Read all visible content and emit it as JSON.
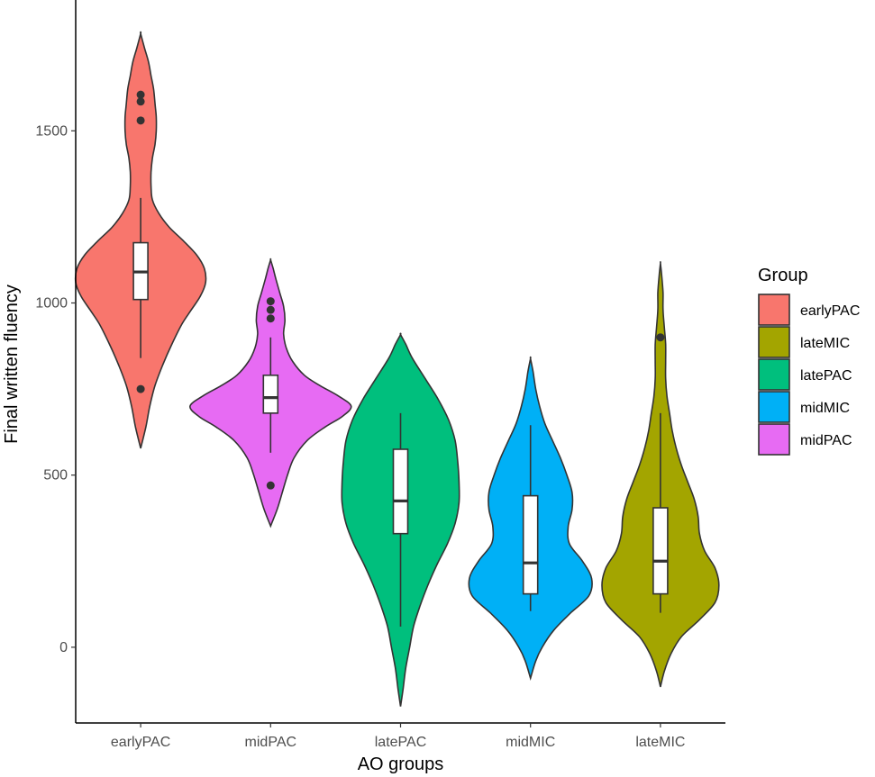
{
  "chart_data": {
    "type": "violin",
    "xlabel": "AO groups",
    "ylabel": "Final written fluency",
    "ylim": [
      -220,
      1880
    ],
    "yticks": [
      0,
      500,
      1000,
      1500
    ],
    "grid": false,
    "legend": {
      "title": "Group",
      "placement": "right",
      "entries": [
        {
          "label": "earlyPAC",
          "color": "#F8766D"
        },
        {
          "label": "lateMIC",
          "color": "#A3A500"
        },
        {
          "label": "latePAC",
          "color": "#00BF7D"
        },
        {
          "label": "midMIC",
          "color": "#00B0F6"
        },
        {
          "label": "midPAC",
          "color": "#E76BF3"
        }
      ]
    },
    "categories": [
      "earlyPAC",
      "midPAC",
      "latePAC",
      "midMIC",
      "lateMIC"
    ],
    "groups": [
      {
        "name": "earlyPAC",
        "color": "#F8766D",
        "box": {
          "q1": 1010,
          "median": 1090,
          "q3": 1175,
          "whisker_low": 840,
          "whisker_high": 1305
        },
        "outliers": [
          750,
          1530,
          1585,
          1605
        ],
        "violin": {
          "y": [
            578,
            640,
            700,
            760,
            820,
            880,
            940,
            980,
            1020,
            1060,
            1100,
            1140,
            1180,
            1220,
            1260,
            1300,
            1340,
            1380,
            1420,
            1460,
            1500,
            1540,
            1580,
            1620,
            1660,
            1700,
            1740,
            1782
          ],
          "half_width": [
            0,
            0.04,
            0.07,
            0.11,
            0.17,
            0.24,
            0.32,
            0.39,
            0.46,
            0.5,
            0.49,
            0.43,
            0.33,
            0.22,
            0.14,
            0.09,
            0.08,
            0.08,
            0.09,
            0.11,
            0.12,
            0.12,
            0.11,
            0.1,
            0.08,
            0.06,
            0.03,
            0
          ]
        }
      },
      {
        "name": "midPAC",
        "color": "#E76BF3",
        "box": {
          "q1": 680,
          "median": 725,
          "q3": 790,
          "whisker_low": 565,
          "whisker_high": 900
        },
        "outliers": [
          470,
          955,
          980,
          1005
        ],
        "violin": {
          "y": [
            352,
            400,
            450,
            500,
            550,
            600,
            640,
            670,
            700,
            730,
            760,
            790,
            830,
            870,
            910,
            950,
            990,
            1030,
            1070,
            1100,
            1125
          ],
          "half_width": [
            0,
            0.05,
            0.09,
            0.13,
            0.18,
            0.28,
            0.42,
            0.55,
            0.62,
            0.52,
            0.38,
            0.26,
            0.17,
            0.12,
            0.1,
            0.11,
            0.1,
            0.07,
            0.04,
            0.02,
            0
          ]
        }
      },
      {
        "name": "latePAC",
        "color": "#00BF7D",
        "box": {
          "q1": 330,
          "median": 425,
          "q3": 575,
          "whisker_low": 60,
          "whisker_high": 680
        },
        "outliers": [],
        "violin": {
          "y": [
            -172,
            -120,
            -60,
            0,
            60,
            120,
            180,
            240,
            300,
            360,
            420,
            480,
            540,
            600,
            660,
            720,
            780,
            840,
            880,
            908
          ],
          "half_width": [
            0,
            0.02,
            0.04,
            0.07,
            0.1,
            0.15,
            0.21,
            0.28,
            0.36,
            0.42,
            0.45,
            0.45,
            0.44,
            0.42,
            0.37,
            0.29,
            0.19,
            0.09,
            0.04,
            0
          ]
        }
      },
      {
        "name": "midMIC",
        "color": "#00B0F6",
        "box": {
          "q1": 155,
          "median": 245,
          "q3": 440,
          "whisker_low": 105,
          "whisker_high": 645
        },
        "outliers": [],
        "violin": {
          "y": [
            -90,
            -40,
            0,
            50,
            100,
            150,
            200,
            250,
            300,
            350,
            400,
            450,
            500,
            550,
            600,
            650,
            700,
            750,
            800,
            838
          ],
          "half_width": [
            0,
            0.04,
            0.09,
            0.18,
            0.31,
            0.45,
            0.47,
            0.4,
            0.3,
            0.29,
            0.32,
            0.32,
            0.28,
            0.23,
            0.17,
            0.11,
            0.07,
            0.04,
            0.02,
            0
          ]
        }
      },
      {
        "name": "lateMIC",
        "color": "#A3A500",
        "box": {
          "q1": 155,
          "median": 250,
          "q3": 405,
          "whisker_low": 100,
          "whisker_high": 680
        },
        "outliers": [
          900
        ],
        "violin": {
          "y": [
            -115,
            -70,
            -20,
            30,
            80,
            130,
            180,
            230,
            280,
            330,
            380,
            430,
            480,
            530,
            580,
            630,
            680,
            730,
            780,
            830,
            880,
            930,
            980,
            1030,
            1080,
            1115
          ],
          "half_width": [
            0,
            0.03,
            0.08,
            0.16,
            0.3,
            0.42,
            0.45,
            0.42,
            0.34,
            0.3,
            0.29,
            0.26,
            0.21,
            0.16,
            0.12,
            0.09,
            0.07,
            0.05,
            0.04,
            0.04,
            0.04,
            0.03,
            0.02,
            0.02,
            0.01,
            0
          ]
        }
      }
    ]
  }
}
